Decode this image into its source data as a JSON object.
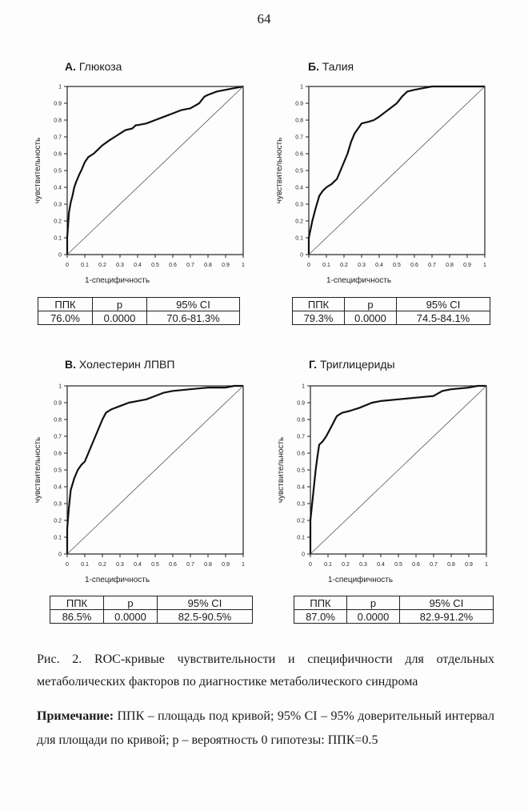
{
  "page_number": "64",
  "chart_common": {
    "ylabel": "чувствительность",
    "xlabel": "1-специфичность",
    "xticks": [
      "0",
      "0.1",
      "0.2",
      "0.3",
      "0.4",
      "0.5",
      "0.6",
      "0.7",
      "0.8",
      "0.9",
      "1"
    ],
    "yticks": [
      "0",
      "0.1",
      "0.2",
      "0.3",
      "0.4",
      "0.5",
      "0.6",
      "0.7",
      "0.8",
      "0.9",
      "1"
    ]
  },
  "table_headers": [
    "ППК",
    "p",
    "95% CI"
  ],
  "panels": [
    {
      "letter": "А.",
      "name": "Глюкоза",
      "stats": [
        "76.0%",
        "0.0000",
        "70.6-81.3%"
      ]
    },
    {
      "letter": "Б.",
      "name": "Талия",
      "stats": [
        "79.3%",
        "0.0000",
        "74.5-84.1%"
      ]
    },
    {
      "letter": "В.",
      "name": "Холестерин ЛПВП",
      "stats": [
        "86.5%",
        "0.0000",
        "82.5-90.5%"
      ]
    },
    {
      "letter": "Г.",
      "name": "Триглицериды",
      "stats": [
        "87.0%",
        "0.0000",
        "82.9-91.2%"
      ]
    }
  ],
  "chart_data": [
    {
      "type": "line",
      "title": "А. Глюкоза",
      "xlabel": "1-специфичность",
      "ylabel": "чувствительность",
      "xlim": [
        0,
        1
      ],
      "ylim": [
        0,
        1
      ],
      "grid": false,
      "series": [
        {
          "values_x": [
            0,
            0,
            0.01,
            0.02,
            0.03,
            0.04,
            0.05,
            0.07,
            0.08,
            0.1,
            0.12,
            0.15,
            0.17,
            0.2,
            0.24,
            0.27,
            0.3,
            0.33,
            0.37,
            0.39,
            0.4,
            0.45,
            0.5,
            0.55,
            0.6,
            0.65,
            0.7,
            0.75,
            0.78,
            0.8,
            0.85,
            0.9,
            0.95,
            1
          ],
          "values_y": [
            0,
            0.1,
            0.25,
            0.31,
            0.35,
            0.4,
            0.43,
            0.48,
            0.5,
            0.55,
            0.58,
            0.6,
            0.62,
            0.65,
            0.68,
            0.7,
            0.72,
            0.74,
            0.75,
            0.77,
            0.77,
            0.78,
            0.8,
            0.82,
            0.84,
            0.86,
            0.87,
            0.9,
            0.94,
            0.95,
            0.97,
            0.98,
            0.99,
            1
          ]
        },
        {
          "values_x": [
            0,
            1
          ],
          "values_y": [
            0,
            1
          ]
        }
      ]
    },
    {
      "type": "line",
      "title": "Б. Талия",
      "xlabel": "1-специфичность",
      "ylabel": "чувствительность",
      "xlim": [
        0,
        1
      ],
      "ylim": [
        0,
        1
      ],
      "grid": false,
      "series": [
        {
          "values_x": [
            0,
            0,
            0.02,
            0.04,
            0.06,
            0.08,
            0.1,
            0.13,
            0.16,
            0.18,
            0.2,
            0.22,
            0.24,
            0.26,
            0.28,
            0.3,
            0.34,
            0.37,
            0.4,
            0.45,
            0.5,
            0.53,
            0.56,
            0.6,
            0.65,
            0.7,
            0.8,
            0.9,
            1
          ],
          "values_y": [
            0,
            0.1,
            0.2,
            0.28,
            0.35,
            0.38,
            0.4,
            0.42,
            0.45,
            0.5,
            0.55,
            0.6,
            0.67,
            0.72,
            0.75,
            0.78,
            0.79,
            0.8,
            0.82,
            0.86,
            0.9,
            0.94,
            0.97,
            0.98,
            0.99,
            1,
            1,
            1,
            1
          ]
        },
        {
          "values_x": [
            0,
            1
          ],
          "values_y": [
            0,
            1
          ]
        }
      ]
    },
    {
      "type": "line",
      "title": "В. Холестерин ЛПВП",
      "xlabel": "1-специфичность",
      "ylabel": "чувствительность",
      "xlim": [
        0,
        1
      ],
      "ylim": [
        0,
        1
      ],
      "grid": false,
      "series": [
        {
          "values_x": [
            0,
            0,
            0.01,
            0.02,
            0.04,
            0.06,
            0.08,
            0.1,
            0.12,
            0.14,
            0.16,
            0.18,
            0.2,
            0.22,
            0.25,
            0.3,
            0.35,
            0.4,
            0.45,
            0.5,
            0.55,
            0.6,
            0.7,
            0.8,
            0.9,
            0.95,
            1
          ],
          "values_y": [
            0,
            0.15,
            0.28,
            0.38,
            0.45,
            0.5,
            0.53,
            0.55,
            0.6,
            0.65,
            0.7,
            0.75,
            0.8,
            0.84,
            0.86,
            0.88,
            0.9,
            0.91,
            0.92,
            0.94,
            0.96,
            0.97,
            0.98,
            0.99,
            0.99,
            1,
            1
          ]
        },
        {
          "values_x": [
            0,
            1
          ],
          "values_y": [
            0,
            1
          ]
        }
      ]
    },
    {
      "type": "line",
      "title": "Г. Триглицериды",
      "xlabel": "1-специфичность",
      "ylabel": "чувствительность",
      "xlim": [
        0,
        1
      ],
      "ylim": [
        0,
        1
      ],
      "grid": false,
      "series": [
        {
          "values_x": [
            0,
            0,
            0.01,
            0.02,
            0.03,
            0.04,
            0.05,
            0.07,
            0.09,
            0.11,
            0.13,
            0.15,
            0.18,
            0.22,
            0.28,
            0.35,
            0.4,
            0.5,
            0.6,
            0.7,
            0.75,
            0.8,
            0.9,
            0.95,
            1
          ],
          "values_y": [
            0,
            0.2,
            0.3,
            0.4,
            0.5,
            0.58,
            0.65,
            0.67,
            0.7,
            0.74,
            0.78,
            0.82,
            0.84,
            0.85,
            0.87,
            0.9,
            0.91,
            0.92,
            0.93,
            0.94,
            0.97,
            0.98,
            0.99,
            1,
            1
          ]
        },
        {
          "values_x": [
            0,
            1
          ],
          "values_y": [
            0,
            1
          ]
        }
      ]
    }
  ],
  "caption": "Рис. 2. ROC-кривые чувствительности и специфичности для отдельных метаболических факторов по диагностике метаболического синдрома",
  "note_label": "Примечание:",
  "note_text": " ППК – площадь под кривой; 95% CI – 95% доверительный интервал для площади по кривой; р – вероятность 0 гипотезы: ППК=0.5"
}
